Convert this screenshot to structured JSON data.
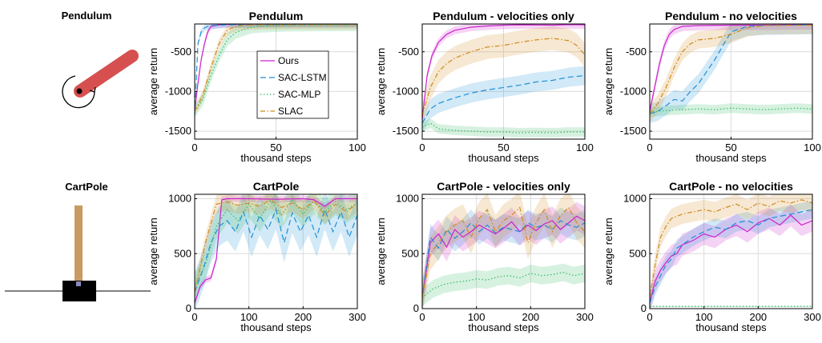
{
  "env_labels": [
    "Pendulum",
    "CartPole"
  ],
  "colors": {
    "ours": "#cc22cc",
    "sac_lstm": "#1f8fd6",
    "sac_mlp": "#33bb66",
    "slac": "#d08a1e",
    "pole": "#d65050",
    "cart_pole": "#c99a63",
    "grid": "#dcdcdc"
  },
  "chart_data": [
    {
      "type": "line",
      "title": "Pendulum",
      "xlabel": "thousand steps",
      "ylabel": "average return",
      "xlim": [
        0,
        100
      ],
      "ylim": [
        -1600,
        -150
      ],
      "xticks": [
        0,
        50,
        100
      ],
      "yticks": [
        -1500,
        -1000,
        -500
      ],
      "grid": true,
      "legend": {
        "placement": "center",
        "entries": [
          "Ours",
          "SAC-LSTM",
          "SAC-MLP",
          "SLAC"
        ]
      },
      "series": [
        {
          "name": "Ours",
          "x": [
            0,
            2,
            4,
            6,
            8,
            10,
            15,
            20,
            40,
            60,
            80,
            100
          ],
          "y": [
            -1250,
            -900,
            -600,
            -400,
            -250,
            -180,
            -160,
            -155,
            -150,
            -150,
            -150,
            -150
          ],
          "band": 40
        },
        {
          "name": "SAC-LSTM",
          "x": [
            0,
            2,
            4,
            6,
            8,
            10,
            15,
            20,
            40,
            60,
            80,
            100
          ],
          "y": [
            -1300,
            -400,
            -250,
            -200,
            -180,
            -170,
            -165,
            -160,
            -158,
            -156,
            -155,
            -155
          ],
          "band": 40
        },
        {
          "name": "SAC-MLP",
          "x": [
            0,
            5,
            10,
            15,
            20,
            25,
            30,
            35,
            40,
            50,
            60,
            80,
            100
          ],
          "y": [
            -1250,
            -1100,
            -800,
            -550,
            -350,
            -260,
            -220,
            -190,
            -180,
            -170,
            -165,
            -160,
            -160
          ],
          "band": 80
        },
        {
          "name": "SLAC",
          "x": [
            0,
            5,
            10,
            15,
            20,
            25,
            30,
            40,
            60,
            80,
            100
          ],
          "y": [
            -1250,
            -1050,
            -700,
            -400,
            -230,
            -180,
            -165,
            -160,
            -158,
            -158,
            -158
          ],
          "band": 60
        }
      ]
    },
    {
      "type": "line",
      "title": "Pendulum - velocities only",
      "xlabel": "thousand steps",
      "ylabel": "average return",
      "xlim": [
        0,
        100
      ],
      "ylim": [
        -1600,
        -150
      ],
      "xticks": [
        0,
        50,
        100
      ],
      "yticks": [
        -1500,
        -1000,
        -500
      ],
      "grid": true,
      "series": [
        {
          "name": "Ours",
          "x": [
            0,
            3,
            6,
            10,
            15,
            20,
            30,
            40,
            50,
            60,
            70,
            80,
            90,
            100
          ],
          "y": [
            -1350,
            -800,
            -550,
            -380,
            -280,
            -230,
            -190,
            -175,
            -165,
            -160,
            -162,
            -165,
            -158,
            -160
          ],
          "band": 50
        },
        {
          "name": "SAC-LSTM",
          "x": [
            0,
            5,
            10,
            20,
            30,
            40,
            50,
            60,
            70,
            80,
            90,
            100
          ],
          "y": [
            -1400,
            -1220,
            -1150,
            -1080,
            -1020,
            -980,
            -950,
            -920,
            -880,
            -860,
            -820,
            -800
          ],
          "band": 120
        },
        {
          "name": "SAC-MLP",
          "x": [
            0,
            5,
            10,
            20,
            30,
            40,
            50,
            60,
            70,
            80,
            90,
            100
          ],
          "y": [
            -1450,
            -1400,
            -1470,
            -1490,
            -1500,
            -1510,
            -1510,
            -1520,
            -1515,
            -1520,
            -1510,
            -1510
          ],
          "band": 60
        },
        {
          "name": "SLAC",
          "x": [
            0,
            5,
            10,
            15,
            20,
            30,
            40,
            50,
            60,
            70,
            80,
            90,
            95,
            100
          ],
          "y": [
            -1300,
            -950,
            -750,
            -650,
            -580,
            -500,
            -440,
            -420,
            -380,
            -350,
            -330,
            -360,
            -420,
            -540
          ],
          "band": 150
        }
      ]
    },
    {
      "type": "line",
      "title": "Pendulum - no velocities",
      "xlabel": "thousand steps",
      "ylabel": "average return",
      "xlim": [
        0,
        100
      ],
      "ylim": [
        -1600,
        -150
      ],
      "xticks": [
        0,
        50,
        100
      ],
      "yticks": [
        -1500,
        -1000,
        -500
      ],
      "grid": true,
      "series": [
        {
          "name": "Ours",
          "x": [
            0,
            3,
            6,
            9,
            12,
            15,
            20,
            30,
            50,
            70,
            100
          ],
          "y": [
            -1250,
            -950,
            -650,
            -420,
            -280,
            -220,
            -180,
            -170,
            -165,
            -165,
            -160
          ],
          "band": 60
        },
        {
          "name": "SAC-LSTM",
          "x": [
            0,
            5,
            10,
            15,
            20,
            25,
            30,
            35,
            40,
            45,
            50,
            60,
            70,
            100
          ],
          "y": [
            -1280,
            -1250,
            -1180,
            -1100,
            -1120,
            -1000,
            -900,
            -750,
            -600,
            -420,
            -250,
            -180,
            -170,
            -160
          ],
          "band": 120
        },
        {
          "name": "SAC-MLP",
          "x": [
            0,
            10,
            20,
            30,
            40,
            50,
            60,
            70,
            80,
            90,
            100
          ],
          "y": [
            -1260,
            -1240,
            -1230,
            -1220,
            -1230,
            -1210,
            -1220,
            -1230,
            -1220,
            -1210,
            -1220
          ],
          "band": 60
        },
        {
          "name": "SLAC",
          "x": [
            0,
            5,
            10,
            15,
            20,
            25,
            30,
            40,
            50,
            60,
            70,
            100
          ],
          "y": [
            -1280,
            -1150,
            -950,
            -700,
            -500,
            -400,
            -350,
            -330,
            -280,
            -200,
            -170,
            -165
          ],
          "band": 110
        }
      ]
    },
    {
      "type": "line",
      "title": "CartPole",
      "xlabel": "thousand steps",
      "ylabel": "average return",
      "xlim": [
        0,
        300
      ],
      "ylim": [
        0,
        1040
      ],
      "xticks": [
        0,
        100,
        200,
        300
      ],
      "yticks": [
        0,
        500,
        1000
      ],
      "grid": true,
      "series": [
        {
          "name": "Ours",
          "x": [
            0,
            10,
            20,
            30,
            40,
            50,
            60,
            80,
            100,
            150,
            200,
            220,
            240,
            260,
            280,
            300
          ],
          "y": [
            50,
            200,
            260,
            280,
            450,
            990,
            1000,
            1000,
            1000,
            995,
            1000,
            990,
            930,
            1000,
            1000,
            1000
          ],
          "band": 30
        },
        {
          "name": "SAC-LSTM",
          "x": [
            0,
            15,
            30,
            45,
            60,
            75,
            90,
            105,
            120,
            135,
            150,
            165,
            180,
            195,
            210,
            225,
            240,
            255,
            270,
            285,
            300
          ],
          "y": [
            150,
            350,
            600,
            750,
            800,
            700,
            880,
            650,
            850,
            720,
            900,
            600,
            870,
            700,
            850,
            650,
            900,
            700,
            880,
            650,
            850
          ],
          "band": 180
        },
        {
          "name": "SAC-MLP",
          "x": [
            0,
            20,
            40,
            60,
            80,
            100,
            120,
            140,
            160,
            180,
            200,
            220,
            240,
            260,
            280,
            300
          ],
          "y": [
            200,
            400,
            750,
            900,
            800,
            950,
            820,
            980,
            850,
            990,
            860,
            980,
            880,
            970,
            900,
            960
          ],
          "band": 120
        },
        {
          "name": "SLAC",
          "x": [
            0,
            20,
            40,
            60,
            80,
            100,
            120,
            140,
            160,
            180,
            200,
            220,
            240,
            260,
            280,
            300
          ],
          "y": [
            150,
            600,
            950,
            970,
            940,
            960,
            930,
            990,
            920,
            960,
            900,
            980,
            850,
            950,
            880,
            960
          ],
          "band": 80
        }
      ]
    },
    {
      "type": "line",
      "title": "CartPole - velocities only",
      "xlabel": "thousand steps",
      "ylabel": "average return",
      "xlim": [
        0,
        300
      ],
      "ylim": [
        0,
        1040
      ],
      "xticks": [
        0,
        100,
        200,
        300
      ],
      "yticks": [
        0,
        500,
        1000
      ],
      "grid": true,
      "series": [
        {
          "name": "Ours",
          "x": [
            0,
            15,
            30,
            45,
            60,
            75,
            90,
            105,
            120,
            135,
            150,
            165,
            180,
            195,
            210,
            225,
            240,
            255,
            270,
            285,
            300
          ],
          "y": [
            100,
            600,
            680,
            560,
            720,
            650,
            700,
            760,
            720,
            680,
            730,
            790,
            700,
            760,
            710,
            770,
            800,
            720,
            780,
            840,
            800
          ],
          "band": 130
        },
        {
          "name": "SAC-LSTM",
          "x": [
            0,
            15,
            30,
            45,
            60,
            75,
            90,
            105,
            120,
            135,
            150,
            165,
            180,
            195,
            210,
            225,
            240,
            255,
            270,
            285,
            300
          ],
          "y": [
            100,
            650,
            550,
            720,
            640,
            700,
            780,
            700,
            760,
            690,
            740,
            720,
            700,
            780,
            740,
            760,
            720,
            800,
            760,
            740,
            780
          ],
          "band": 120
        },
        {
          "name": "SAC-MLP",
          "x": [
            0,
            20,
            40,
            60,
            80,
            100,
            120,
            140,
            160,
            180,
            200,
            220,
            240,
            260,
            280,
            300
          ],
          "y": [
            100,
            180,
            220,
            240,
            250,
            270,
            260,
            290,
            300,
            280,
            320,
            300,
            310,
            330,
            300,
            320
          ],
          "band": 80
        },
        {
          "name": "SLAC",
          "x": [
            0,
            15,
            30,
            45,
            60,
            75,
            90,
            105,
            120,
            135,
            150,
            165,
            180,
            195,
            210,
            225,
            240,
            255,
            270,
            285,
            300
          ],
          "y": [
            100,
            500,
            600,
            700,
            760,
            800,
            650,
            820,
            900,
            700,
            800,
            850,
            920,
            600,
            780,
            900,
            700,
            850,
            920,
            780,
            700
          ],
          "band": 150
        }
      ]
    },
    {
      "type": "line",
      "title": "CartPole - no velocities",
      "xlabel": "thousand steps",
      "ylabel": "average return",
      "xlim": [
        0,
        300
      ],
      "ylim": [
        0,
        1040
      ],
      "xticks": [
        0,
        100,
        200,
        300
      ],
      "yticks": [
        0,
        500,
        1000
      ],
      "grid": true,
      "series": [
        {
          "name": "Ours",
          "x": [
            0,
            10,
            20,
            30,
            40,
            50,
            60,
            80,
            100,
            120,
            140,
            160,
            180,
            200,
            220,
            240,
            260,
            280,
            300
          ],
          "y": [
            50,
            250,
            350,
            420,
            480,
            500,
            580,
            620,
            680,
            650,
            720,
            760,
            700,
            780,
            820,
            760,
            850,
            760,
            800
          ],
          "band": 100
        },
        {
          "name": "SAC-LSTM",
          "x": [
            0,
            10,
            20,
            30,
            40,
            50,
            60,
            80,
            100,
            120,
            140,
            160,
            180,
            200,
            220,
            240,
            260,
            280,
            300
          ],
          "y": [
            50,
            200,
            300,
            400,
            450,
            550,
            580,
            650,
            700,
            740,
            720,
            780,
            800,
            760,
            820,
            840,
            860,
            880,
            900
          ],
          "band": 80
        },
        {
          "name": "SAC-MLP",
          "x": [
            0,
            50,
            100,
            150,
            200,
            250,
            300
          ],
          "y": [
            20,
            20,
            20,
            20,
            20,
            20,
            20
          ],
          "band": 5
        },
        {
          "name": "SLAC",
          "x": [
            0,
            10,
            20,
            30,
            40,
            60,
            80,
            100,
            120,
            140,
            160,
            180,
            200,
            220,
            240,
            260,
            280,
            300
          ],
          "y": [
            100,
            400,
            650,
            750,
            820,
            860,
            880,
            900,
            880,
            920,
            950,
            900,
            960,
            930,
            980,
            960,
            990,
            960
          ],
          "band": 90
        }
      ]
    }
  ]
}
